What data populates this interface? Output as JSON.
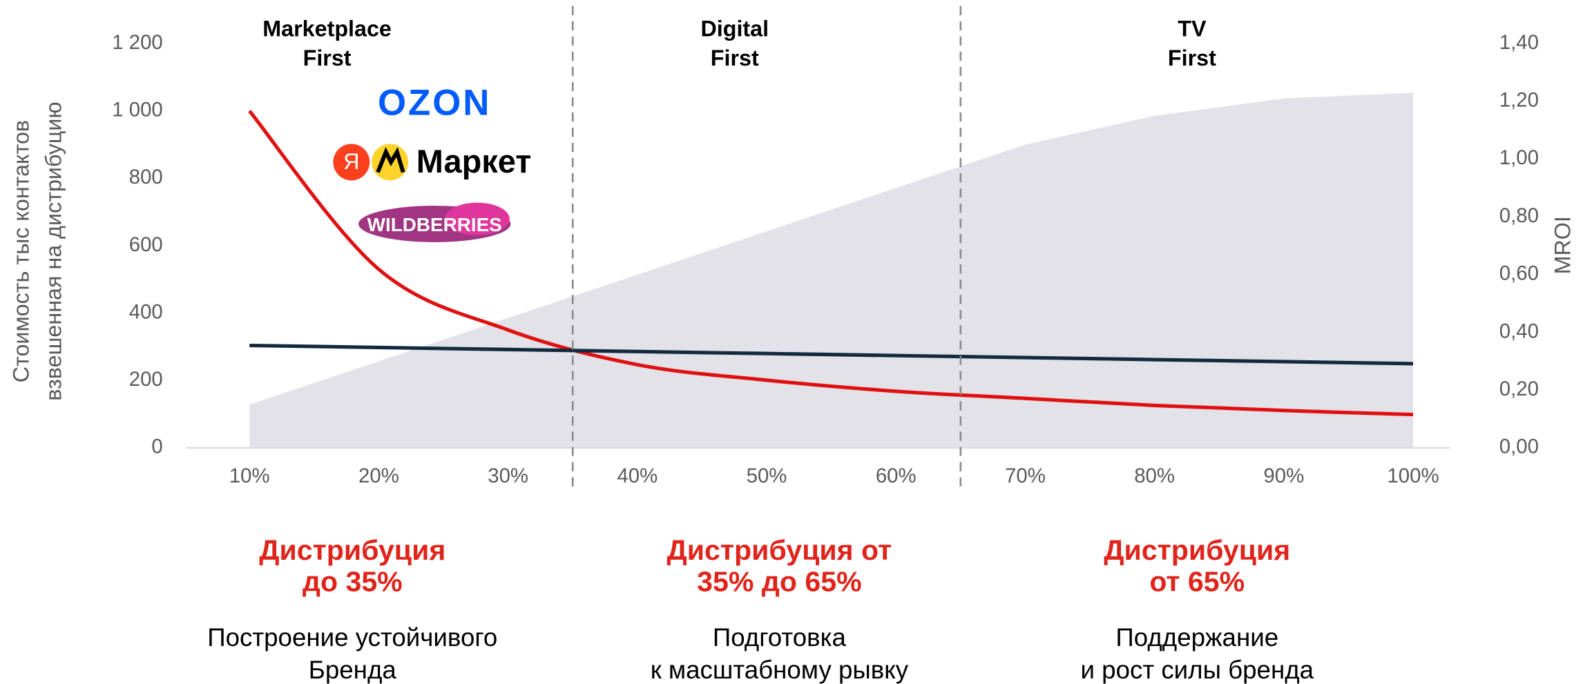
{
  "chart_data": {
    "type": "line",
    "x": [
      10,
      20,
      30,
      40,
      50,
      60,
      70,
      80,
      90,
      100
    ],
    "xlim": [
      5.1,
      102.9
    ],
    "xticks": [
      {
        "value": 10,
        "label": "10%"
      },
      {
        "value": 20,
        "label": "20%"
      },
      {
        "value": 30,
        "label": "30%"
      },
      {
        "value": 40,
        "label": "40%"
      },
      {
        "value": 50,
        "label": "50%"
      },
      {
        "value": 60,
        "label": "60%"
      },
      {
        "value": 70,
        "label": "70%"
      },
      {
        "value": 80,
        "label": "80%"
      },
      {
        "value": 90,
        "label": "90%"
      },
      {
        "value": 100,
        "label": "100%"
      }
    ],
    "ylim": [
      0,
      1200
    ],
    "yticks": [
      0,
      200,
      400,
      600,
      800,
      {
        "value": 1000,
        "label": "1 000"
      },
      {
        "value": 1200,
        "label": "1 200"
      }
    ],
    "y2lim": [
      0,
      1.4
    ],
    "y2ticks": [
      {
        "value": 0,
        "label": "0,00"
      },
      {
        "value": 0.2,
        "label": "0,20"
      },
      {
        "value": 0.4,
        "label": "0,40"
      },
      {
        "value": 0.6,
        "label": "0,60"
      },
      {
        "value": 0.8,
        "label": "0,80"
      },
      {
        "value": 1.0,
        "label": "1,00"
      },
      {
        "value": 1.2,
        "label": "1,20"
      },
      {
        "value": 1.4,
        "label": "1,40"
      }
    ],
    "ylabel": [
      "Стоимость тыс контактов",
      "взвешенная на дистрибуцию"
    ],
    "y2label": "MROI",
    "series": [
      {
        "style": "area",
        "axis": "y2",
        "color": "#e2e2e8",
        "values": [
          0.15,
          0.3,
          0.45,
          0.6,
          0.75,
          0.9,
          1.05,
          1.15,
          1.21,
          1.23
        ]
      },
      {
        "style": "line",
        "axis": "y",
        "color": "#e01010",
        "values": [
          1000,
          530,
          350,
          247,
          201,
          168,
          147,
          126,
          111,
          99
        ]
      },
      {
        "style": "line",
        "axis": "y",
        "color": "#13293d",
        "values": [
          304,
          298,
          292,
          286,
          280,
          274,
          268,
          262,
          256,
          250
        ]
      }
    ],
    "dividers": [
      35,
      65
    ],
    "sections": [
      {
        "title": [
          "Marketplace",
          "First"
        ],
        "heading": [
          "Дистрибуция",
          "до 35%"
        ],
        "text": [
          "Построение устойчивого",
          "Бренда"
        ]
      },
      {
        "title": [
          "Digital",
          "First"
        ],
        "heading": [
          "Дистрибуция от",
          "35% до 65%"
        ],
        "text": [
          "Подготовка",
          "к масштабному рывку"
        ]
      },
      {
        "title": [
          "TV",
          "First"
        ],
        "heading": [
          "Дистрибуция",
          "от 65%"
        ],
        "text": [
          "Поддержание",
          "и рост силы бренда"
        ]
      }
    ],
    "logos": [
      "OZON",
      "Я",
      "Маркет",
      "WILDBERRIES"
    ]
  }
}
